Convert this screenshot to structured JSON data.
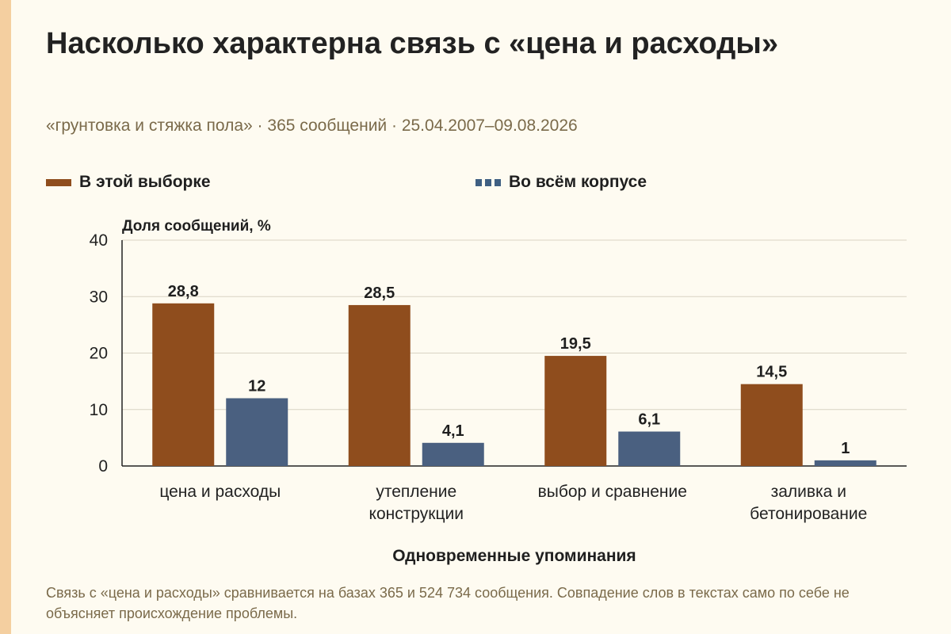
{
  "title": "Насколько характерна связь с «цена и расходы»",
  "subtitle": "«грунтовка и стяжка пола» · 365 сообщений · 25.04.2007–09.08.2026",
  "footnote": "Связь с «цена и расходы» сравнивается на базах 365 и 524 734 сообщения. Совпадение слов в текстах само по себе не объясняет происхождение проблемы.",
  "colors": {
    "background": "#fefbf1",
    "accent": "#f4cfa0",
    "series_sample": "#8f4d1d",
    "series_corpus": "#4a6080",
    "grid": "#d9d3c4",
    "axis": "#222222"
  },
  "chart_data": {
    "type": "bar",
    "ylabel": "Доля сообщений, %",
    "xlabel": "Одновременные упоминания",
    "ylim": [
      0,
      40
    ],
    "yticks": [
      0,
      10,
      20,
      30,
      40
    ],
    "grid": true,
    "legend_position": "top",
    "categories": [
      [
        "цена и расходы"
      ],
      [
        "утепление",
        "конструкции"
      ],
      [
        "выбор и сравнение"
      ],
      [
        "заливка и",
        "бетонирование"
      ]
    ],
    "series": [
      {
        "name": "В этой выборке",
        "values": [
          28.8,
          28.5,
          19.5,
          14.5
        ],
        "labels": [
          "28,8",
          "28,5",
          "19,5",
          "14,5"
        ],
        "color": "#8f4d1d",
        "legend_style": "solid"
      },
      {
        "name": "Во всём корпусе",
        "values": [
          12,
          4.1,
          6.1,
          1
        ],
        "labels": [
          "12",
          "4,1",
          "6,1",
          "1"
        ],
        "color": "#4a6080",
        "legend_style": "dashed"
      }
    ]
  }
}
